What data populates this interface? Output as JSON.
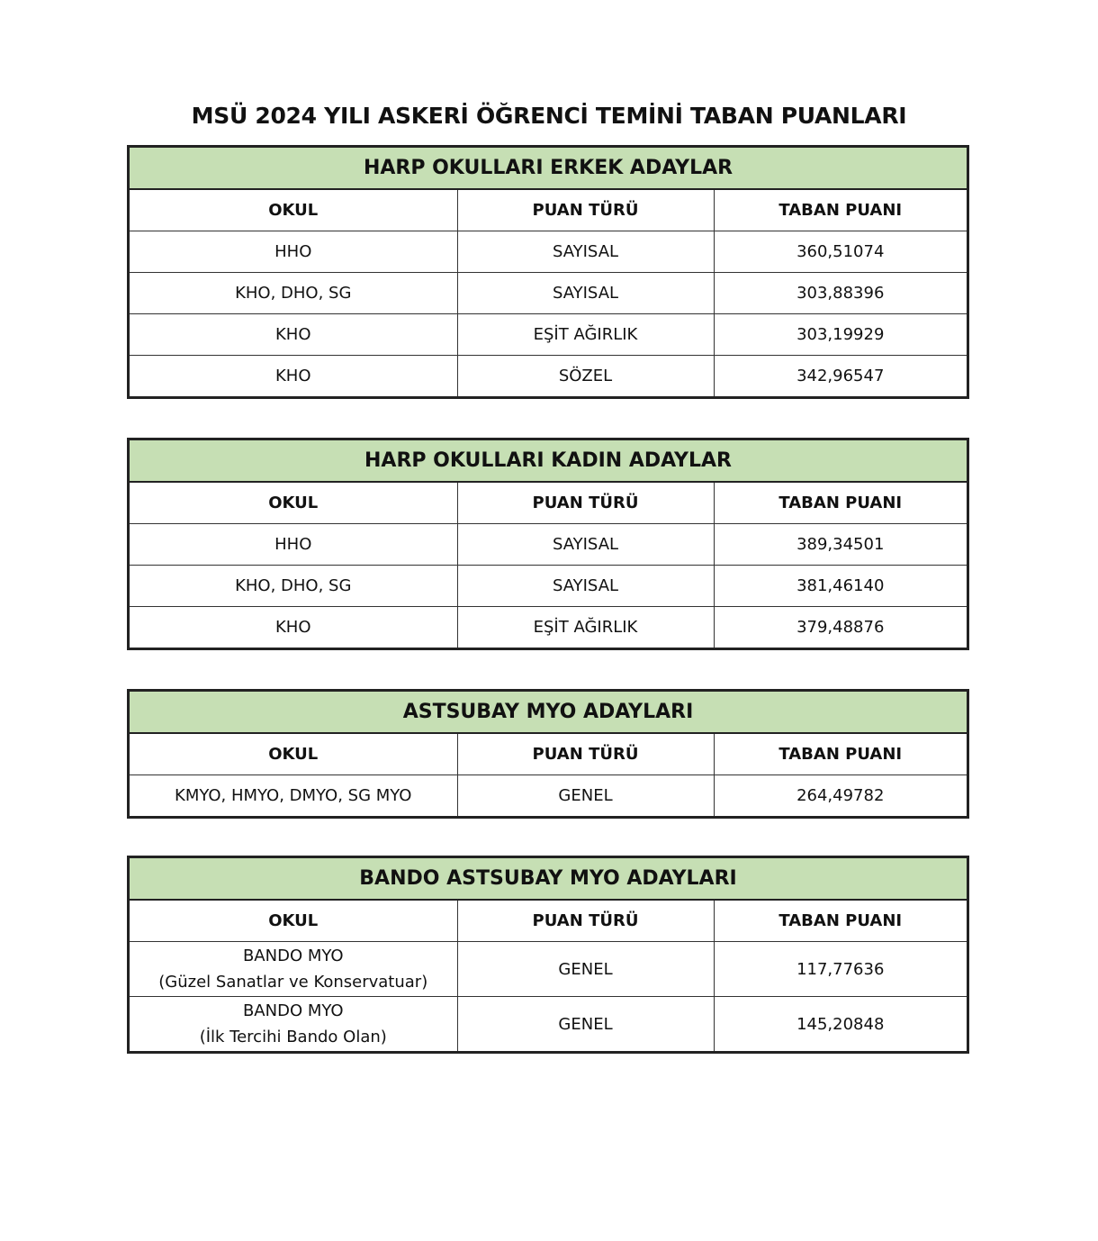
{
  "title": "MSÜ 2024 YILI ASKERİ ÖĞRENCİ TEMİNİ TABAN PUANLARI",
  "colors": {
    "section_header": "#c6dfb4",
    "border": "#222222"
  },
  "tables": [
    {
      "heading": "HARP OKULLARI ERKEK ADAYLAR",
      "columns": [
        "OKUL",
        "PUAN TÜRÜ",
        "TABAN PUANI"
      ],
      "rows": [
        {
          "okul": [
            "HHO"
          ],
          "tur": "SAYISAL",
          "puan": "360,51074"
        },
        {
          "okul": [
            "KHO, DHO, SG"
          ],
          "tur": "SAYISAL",
          "puan": "303,88396"
        },
        {
          "okul": [
            "KHO"
          ],
          "tur": "EŞİT AĞIRLIK",
          "puan": "303,19929"
        },
        {
          "okul": [
            "KHO"
          ],
          "tur": "SÖZEL",
          "puan": "342,96547"
        }
      ]
    },
    {
      "heading": "HARP OKULLARI KADIN ADAYLAR",
      "columns": [
        "OKUL",
        "PUAN TÜRÜ",
        "TABAN PUANI"
      ],
      "rows": [
        {
          "okul": [
            "HHO"
          ],
          "tur": "SAYISAL",
          "puan": "389,34501"
        },
        {
          "okul": [
            "KHO, DHO, SG"
          ],
          "tur": "SAYISAL",
          "puan": "381,46140"
        },
        {
          "okul": [
            "KHO"
          ],
          "tur": "EŞİT AĞIRLIK",
          "puan": "379,48876"
        }
      ]
    },
    {
      "heading": "ASTSUBAY MYO ADAYLARI",
      "columns": [
        "OKUL",
        "PUAN TÜRÜ",
        "TABAN PUANI"
      ],
      "rows": [
        {
          "okul": [
            "KMYO, HMYO, DMYO, SG MYO"
          ],
          "tur": "GENEL",
          "puan": "264,49782"
        }
      ]
    },
    {
      "heading": "BANDO ASTSUBAY MYO ADAYLARI",
      "columns": [
        "OKUL",
        "PUAN TÜRÜ",
        "TABAN PUANI"
      ],
      "rows": [
        {
          "okul": [
            "BANDO MYO",
            "(Güzel Sanatlar ve Konservatuar)"
          ],
          "tur": "GENEL",
          "puan": "117,77636"
        },
        {
          "okul": [
            "BANDO MYO",
            "(İlk Tercihi Bando Olan)"
          ],
          "tur": "GENEL",
          "puan": "145,20848"
        }
      ]
    }
  ]
}
